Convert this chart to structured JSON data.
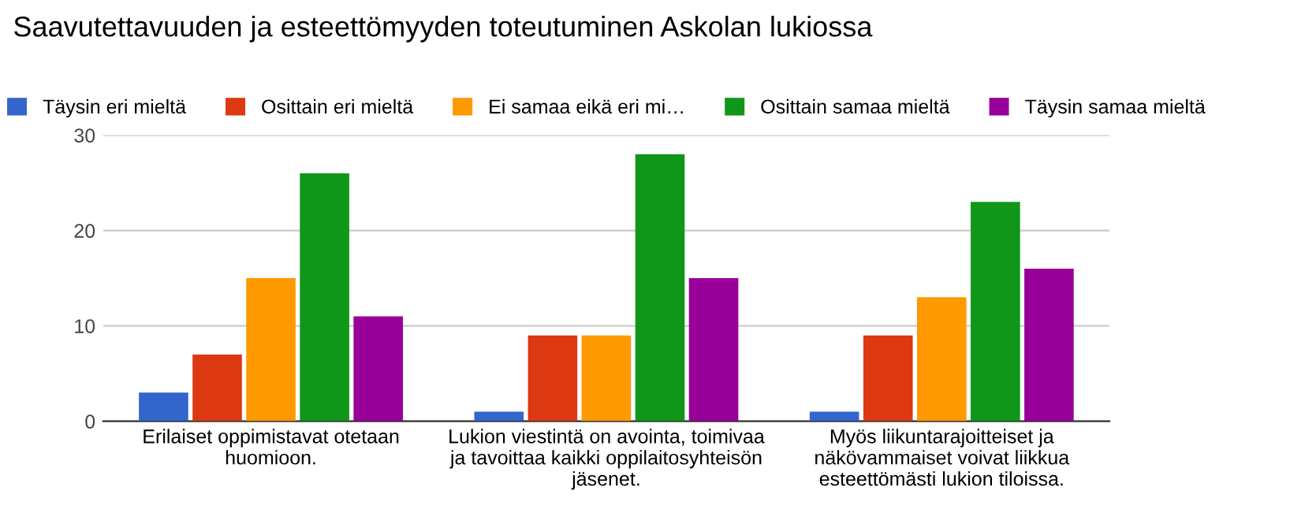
{
  "chart_data": {
    "type": "bar",
    "title": "Saavutettavuuden ja esteettömyyden toteutuminen Askolan lukiossa",
    "categories": [
      "Erilaiset oppimistavat otetaan\nhuomioon.",
      "Lukion viestintä on avointa, toimivaa\nja tavoittaa kaikki oppilaitosyhteisön\njäsenet.",
      "Myös liikuntarajoitteiset ja\nnäkövammaiset voivat liikkua\nesteettömästi lukion tiloissa."
    ],
    "series": [
      {
        "name": "Täysin eri mieltä",
        "color": "#3366cc",
        "values": [
          3,
          1,
          1
        ]
      },
      {
        "name": "Osittain eri mieltä",
        "color": "#dc3912",
        "values": [
          7,
          9,
          9
        ]
      },
      {
        "name": "Ei samaa eikä eri mi…",
        "color": "#ff9900",
        "values": [
          15,
          9,
          13
        ]
      },
      {
        "name": "Osittain samaa mieltä",
        "color": "#109618",
        "values": [
          26,
          28,
          23
        ]
      },
      {
        "name": "Täysin samaa mieltä",
        "color": "#990099",
        "values": [
          11,
          15,
          16
        ]
      }
    ],
    "ylim": [
      0,
      30
    ],
    "yticks": [
      0,
      10,
      20,
      30
    ],
    "grid": "y",
    "legend": "top"
  }
}
